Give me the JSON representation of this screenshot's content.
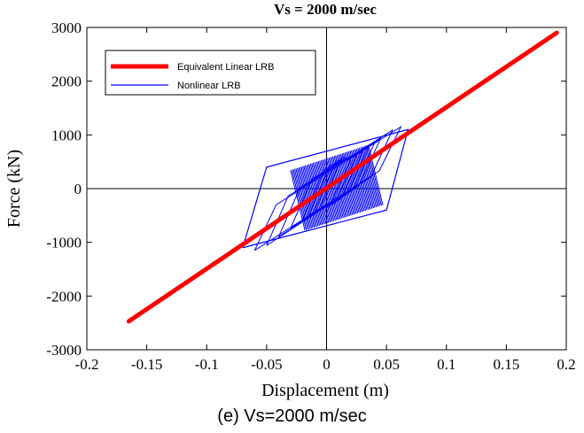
{
  "caption": "(e) Vs=2000 m/sec",
  "colors": {
    "equivalent": "#ff0000",
    "nonlinear": "#0000ff"
  },
  "chart_data": {
    "type": "line",
    "title": "Vs = 2000 m/sec",
    "xlabel": "Displacement (m)",
    "ylabel": "Force (kN)",
    "xlim": [
      -0.2,
      0.2
    ],
    "ylim": [
      -3000,
      3000
    ],
    "xticks": [
      -0.2,
      -0.15,
      -0.1,
      -0.05,
      0,
      0.05,
      0.1,
      0.15,
      0.2
    ],
    "xtick_labels": [
      "-0.2",
      "-0.15",
      "-0.1",
      "-0.05",
      "0",
      "0.05",
      "0.1",
      "0.15",
      "0.2"
    ],
    "yticks": [
      -3000,
      -2000,
      -1000,
      0,
      1000,
      2000,
      3000
    ],
    "ytick_labels": [
      "-3000",
      "-2000",
      "-1000",
      "0",
      "1000",
      "2000",
      "3000"
    ],
    "zero_lines": true,
    "grid": false,
    "legend_position": "top-left",
    "series": [
      {
        "name": "Equivalent Linear LRB",
        "color": "#ff0000",
        "style": "thick",
        "x": [
          -0.165,
          0.192
        ],
        "y": [
          -2470,
          2900
        ]
      },
      {
        "name": "Nonlinear LRB",
        "color": "#0000ff",
        "style": "thin",
        "loop_envelope": {
          "x": [
            -0.07,
            -0.05,
            0.068,
            0.05,
            -0.07
          ],
          "y": [
            -1100,
            400,
            1100,
            -400,
            -1100
          ]
        },
        "inner_cycles": [
          {
            "x_min": -0.06,
            "x_max": 0.062
          },
          {
            "x_min": -0.05,
            "x_max": 0.055
          },
          {
            "x_min": -0.04,
            "x_max": 0.045
          },
          {
            "x_min": -0.03,
            "x_max": 0.04
          },
          {
            "x_min": -0.02,
            "x_max": 0.035
          },
          {
            "x_min": -0.015,
            "x_max": 0.03
          },
          {
            "x_min": -0.01,
            "x_max": 0.025
          },
          {
            "x_min": -0.005,
            "x_max": 0.02
          }
        ]
      }
    ]
  }
}
